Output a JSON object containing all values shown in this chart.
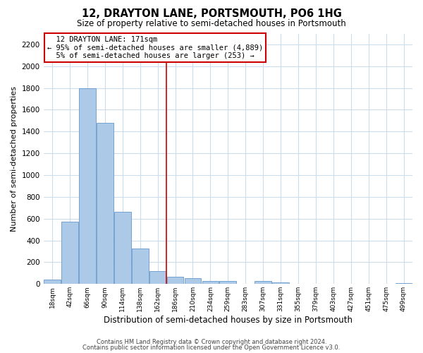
{
  "title": "12, DRAYTON LANE, PORTSMOUTH, PO6 1HG",
  "subtitle": "Size of property relative to semi-detached houses in Portsmouth",
  "xlabel": "Distribution of semi-detached houses by size in Portsmouth",
  "ylabel": "Number of semi-detached properties",
  "bar_labels": [
    "18sqm",
    "42sqm",
    "66sqm",
    "90sqm",
    "114sqm",
    "138sqm",
    "162sqm",
    "186sqm",
    "210sqm",
    "234sqm",
    "259sqm",
    "283sqm",
    "307sqm",
    "331sqm",
    "355sqm",
    "379sqm",
    "403sqm",
    "427sqm",
    "451sqm",
    "475sqm",
    "499sqm"
  ],
  "bar_values": [
    40,
    570,
    1800,
    1480,
    660,
    325,
    120,
    65,
    55,
    30,
    25,
    0,
    30,
    15,
    0,
    0,
    0,
    0,
    0,
    0,
    10
  ],
  "bar_color": "#adc9e8",
  "bar_edge_color": "#6699cc",
  "property_line_label": "12 DRAYTON LANE: 171sqm",
  "annotation_line1": "← 95% of semi-detached houses are smaller (4,889)",
  "annotation_line2": "5% of semi-detached houses are larger (253) →",
  "ylim": [
    0,
    2300
  ],
  "yticks": [
    0,
    200,
    400,
    600,
    800,
    1000,
    1200,
    1400,
    1600,
    1800,
    2000,
    2200
  ],
  "footer_line1": "Contains HM Land Registry data © Crown copyright and database right 2024.",
  "footer_line2": "Contains public sector information licensed under the Open Government Licence v3.0.",
  "background_color": "#ffffff",
  "grid_color": "#ccdcec",
  "annotation_box_color": "#ffffff",
  "annotation_box_edge": "#cc0000",
  "vline_color": "#cc0000"
}
